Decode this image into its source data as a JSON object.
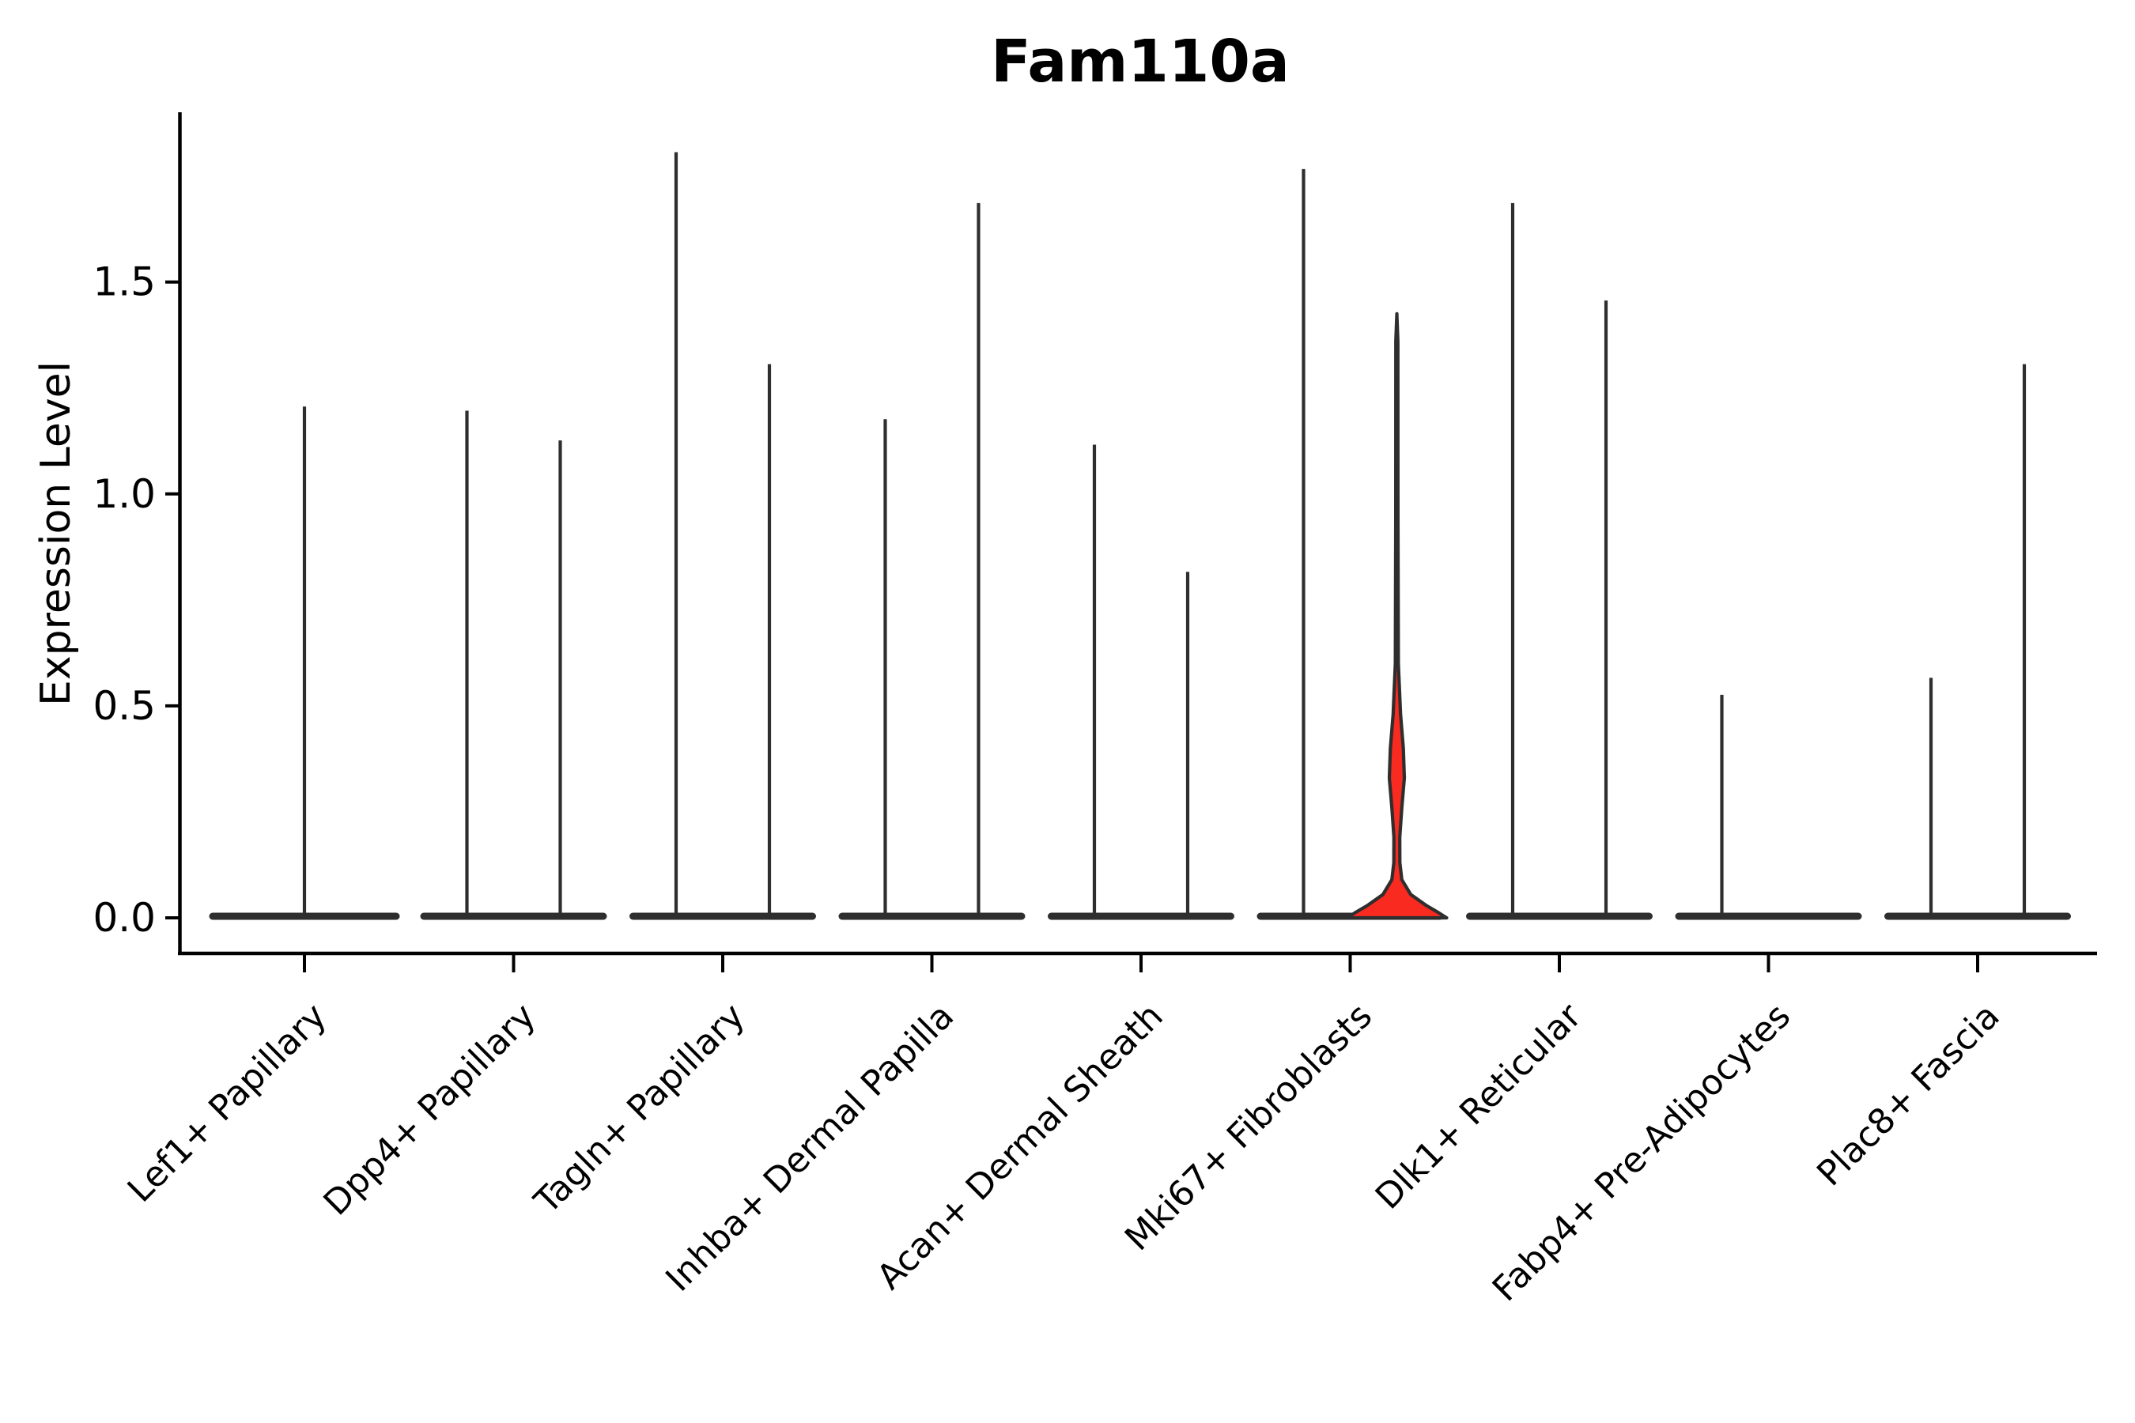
{
  "chart_data": {
    "type": "violin",
    "title": "Fam110a",
    "ylabel": "Expression Level",
    "xlabel": "",
    "yticks": [
      0.0,
      0.5,
      1.0,
      1.5
    ],
    "ylim": [
      -0.09,
      1.9
    ],
    "grid": false,
    "legend": null,
    "x_label_rotation_deg": 45,
    "spines": [
      "left",
      "bottom"
    ],
    "colors": {
      "violin_outline": "#2e2e2e",
      "highlight_fill": "#f92a20",
      "axis": "#000000",
      "background": "#ffffff"
    },
    "categories": [
      "Lef1+ Papillary",
      "Dpp4+ Papillary",
      "Tagln+ Papillary",
      "Inhba+ Dermal Papilla",
      "Acan+ Dermal Sheath",
      "Mki67+ Fibroblasts",
      "Dlk1+ Reticular",
      "Fabp4+ Pre-Adipocytes",
      "Plac8+ Fascia"
    ],
    "series": [
      {
        "category": "Lef1+ Papillary",
        "violins": [
          {
            "side": "center",
            "max_expression": 1.21
          }
        ]
      },
      {
        "category": "Dpp4+ Papillary",
        "violins": [
          {
            "side": "left",
            "max_expression": 1.2
          },
          {
            "side": "right",
            "max_expression": 1.13
          }
        ]
      },
      {
        "category": "Tagln+ Papillary",
        "violins": [
          {
            "side": "left",
            "max_expression": 1.81
          },
          {
            "side": "right",
            "max_expression": 1.31
          }
        ]
      },
      {
        "category": "Inhba+ Dermal Papilla",
        "violins": [
          {
            "side": "left",
            "max_expression": 1.18
          },
          {
            "side": "right",
            "max_expression": 1.69
          }
        ]
      },
      {
        "category": "Acan+ Dermal Sheath",
        "violins": [
          {
            "side": "left",
            "max_expression": 1.12
          },
          {
            "side": "right",
            "max_expression": 0.82
          }
        ]
      },
      {
        "category": "Mki67+ Fibroblasts",
        "violins": [
          {
            "side": "left",
            "max_expression": 1.77
          },
          {
            "side": "right",
            "max_expression": 1.43,
            "highlighted": true
          }
        ]
      },
      {
        "category": "Dlk1+ Reticular",
        "violins": [
          {
            "side": "left",
            "max_expression": 1.69
          },
          {
            "side": "right",
            "max_expression": 1.46
          }
        ]
      },
      {
        "category": "Fabp4+ Pre-Adipocytes",
        "violins": [
          {
            "side": "left",
            "max_expression": 0.53
          },
          {
            "side": "right",
            "max_expression": 0.0
          }
        ]
      },
      {
        "category": "Plac8+ Fascia",
        "violins": [
          {
            "side": "left",
            "max_expression": 0.57
          },
          {
            "side": "right",
            "max_expression": 1.31
          }
        ]
      }
    ],
    "highlight_violin": {
      "category": "Mki67+ Fibroblasts",
      "side": "right",
      "max_expression": 1.43,
      "density_profile": [
        [
          1.425,
          0.0
        ],
        [
          1.36,
          0.02
        ],
        [
          0.95,
          0.022
        ],
        [
          0.6,
          0.03
        ],
        [
          0.48,
          0.075
        ],
        [
          0.4,
          0.13
        ],
        [
          0.33,
          0.15
        ],
        [
          0.26,
          0.1
        ],
        [
          0.19,
          0.058
        ],
        [
          0.13,
          0.06
        ],
        [
          0.09,
          0.1
        ],
        [
          0.055,
          0.28
        ],
        [
          0.03,
          0.58
        ],
        [
          0.012,
          0.84
        ],
        [
          0.0,
          1.0
        ]
      ]
    }
  }
}
